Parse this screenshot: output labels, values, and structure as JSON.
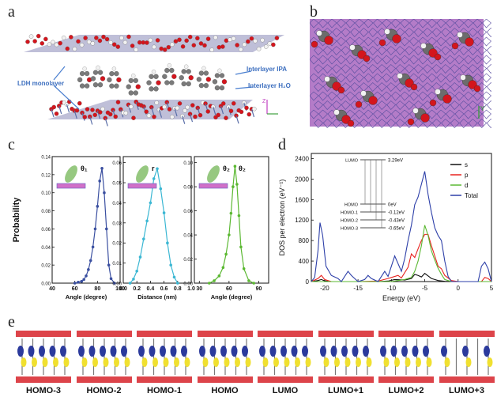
{
  "panels": {
    "a": {
      "letter": "a",
      "labels": {
        "ldh": "LDH monolayer",
        "ipa": "Interlayer IPA",
        "h2o": "Interlayer H₂O",
        "axis_z": "Z",
        "axis_x": "X"
      }
    },
    "b": {
      "letter": "b",
      "labels": {
        "axis_y": "Y"
      }
    },
    "c": {
      "letter": "c"
    },
    "d": {
      "letter": "d"
    },
    "e": {
      "letter": "e"
    }
  },
  "chart_data": [
    {
      "type": "line",
      "panel": "c-left",
      "ylabel": "Probability",
      "xlabel": "Angle (degree)",
      "xlim": [
        40,
        100
      ],
      "ylim": [
        0,
        0.14
      ],
      "xticks": [
        "40",
        "60",
        "80",
        "100"
      ],
      "yticks": [
        "0.00",
        "0.02",
        "0.04",
        "0.06",
        "0.08",
        "0.10",
        "0.12",
        "0.14"
      ],
      "inset_label": "θ₁",
      "color": "#3a4fa0",
      "x": [
        60,
        63,
        66,
        68,
        70,
        72,
        74,
        76,
        78,
        80,
        82,
        84,
        86,
        88,
        90,
        92,
        95
      ],
      "y": [
        0,
        0.001,
        0.002,
        0.004,
        0.008,
        0.015,
        0.025,
        0.04,
        0.06,
        0.085,
        0.113,
        0.127,
        0.1,
        0.06,
        0.02,
        0.005,
        0
      ]
    },
    {
      "type": "line",
      "panel": "c-middle",
      "xlabel": "Distance (nm)",
      "xlim": [
        0.0,
        1.0
      ],
      "ylim": [
        0,
        0.063
      ],
      "xticks": [
        "0.0",
        "0.2",
        "0.4",
        "0.6",
        "0.8",
        "1.0"
      ],
      "yticks": [
        "0.00",
        "0.01",
        "0.02",
        "0.03",
        "0.04",
        "0.05",
        "0.06"
      ],
      "inset_label": "r",
      "color": "#3bb7d3",
      "x": [
        0.1,
        0.15,
        0.2,
        0.25,
        0.3,
        0.35,
        0.4,
        0.45,
        0.5,
        0.55,
        0.6,
        0.65,
        0.7,
        0.75,
        0.8
      ],
      "y": [
        0,
        0.002,
        0.006,
        0.013,
        0.022,
        0.031,
        0.04,
        0.052,
        0.057,
        0.047,
        0.035,
        0.02,
        0.009,
        0.003,
        0
      ]
    },
    {
      "type": "line",
      "panel": "c-right",
      "xlabel": "Angle (degree)",
      "xlim": [
        25,
        100
      ],
      "ylim": [
        0,
        0.105
      ],
      "xticks": [
        "30",
        "60",
        "90"
      ],
      "yticks": [
        "0.00",
        "0.02",
        "0.04",
        "0.06",
        "0.08",
        "0.10"
      ],
      "inset_labels": [
        "θ₂",
        "θ₂"
      ],
      "color": "#5bb832",
      "x": [
        40,
        45,
        50,
        54,
        57,
        60,
        62,
        64,
        66,
        68,
        70,
        72,
        75,
        80,
        85
      ],
      "y": [
        0,
        0.002,
        0.006,
        0.013,
        0.024,
        0.04,
        0.058,
        0.08,
        0.097,
        0.082,
        0.056,
        0.03,
        0.012,
        0.002,
        0
      ]
    },
    {
      "type": "line",
      "panel": "d",
      "ylabel": "DOS per electron (eV⁻¹)",
      "xlabel": "Energy (eV)",
      "xlim": [
        -22,
        5
      ],
      "ylim": [
        0,
        2500
      ],
      "xticks": [
        "-20",
        "-15",
        "-10",
        "-5",
        "0",
        "5"
      ],
      "yticks": [
        "0",
        "400",
        "800",
        "1200",
        "1600",
        "2000",
        "2400"
      ],
      "legend": "top-right",
      "series": [
        {
          "name": "s",
          "color": "#111111",
          "points": [
            [
              -22,
              0
            ],
            [
              -21,
              20
            ],
            [
              -20.5,
              40
            ],
            [
              -20,
              15
            ],
            [
              -19,
              0
            ],
            [
              -12,
              0
            ],
            [
              -10.5,
              10
            ],
            [
              -9.5,
              40
            ],
            [
              -8,
              30
            ],
            [
              -7,
              60
            ],
            [
              -6.5,
              140
            ],
            [
              -6,
              120
            ],
            [
              -5.5,
              90
            ],
            [
              -5,
              160
            ],
            [
              -4.5,
              110
            ],
            [
              -4,
              60
            ],
            [
              -3.5,
              40
            ],
            [
              -3,
              20
            ],
            [
              -2,
              5
            ],
            [
              0,
              0
            ],
            [
              5,
              0
            ]
          ]
        },
        {
          "name": "p",
          "color": "#e8231f",
          "points": [
            [
              -22,
              0
            ],
            [
              -21,
              60
            ],
            [
              -20.5,
              120
            ],
            [
              -20,
              40
            ],
            [
              -19,
              0
            ],
            [
              -15,
              0
            ],
            [
              -12,
              10
            ],
            [
              -10.5,
              60
            ],
            [
              -10,
              80
            ],
            [
              -9,
              120
            ],
            [
              -8.5,
              70
            ],
            [
              -7.5,
              280
            ],
            [
              -7,
              540
            ],
            [
              -6.5,
              470
            ],
            [
              -6,
              640
            ],
            [
              -5.5,
              800
            ],
            [
              -5,
              920
            ],
            [
              -4.5,
              920
            ],
            [
              -4,
              700
            ],
            [
              -3.5,
              500
            ],
            [
              -3,
              300
            ],
            [
              -2.5,
              250
            ],
            [
              -2,
              120
            ],
            [
              -1,
              20
            ],
            [
              0,
              0
            ],
            [
              3.5,
              0
            ],
            [
              4,
              80
            ],
            [
              4.5,
              60
            ],
            [
              5,
              0
            ]
          ]
        },
        {
          "name": "d",
          "color": "#5bb832",
          "points": [
            [
              -22,
              0
            ],
            [
              -10,
              0
            ],
            [
              -9,
              20
            ],
            [
              -8,
              40
            ],
            [
              -7,
              80
            ],
            [
              -6.5,
              200
            ],
            [
              -6,
              400
            ],
            [
              -5.5,
              700
            ],
            [
              -5,
              1100
            ],
            [
              -4.5,
              900
            ],
            [
              -4,
              600
            ],
            [
              -3.5,
              420
            ],
            [
              -3,
              260
            ],
            [
              -2.5,
              140
            ],
            [
              -2,
              40
            ],
            [
              -1,
              0
            ],
            [
              5,
              0
            ]
          ]
        },
        {
          "name": "Total",
          "color": "#2d3fa8",
          "points": [
            [
              -22,
              0
            ],
            [
              -21.5,
              80
            ],
            [
              -21,
              600
            ],
            [
              -20.7,
              1150
            ],
            [
              -20.3,
              900
            ],
            [
              -19.8,
              300
            ],
            [
              -19,
              120
            ],
            [
              -18,
              60
            ],
            [
              -17.5,
              0
            ],
            [
              -16.5,
              200
            ],
            [
              -16,
              120
            ],
            [
              -15,
              0
            ],
            [
              -14,
              40
            ],
            [
              -13.5,
              120
            ],
            [
              -13,
              60
            ],
            [
              -12,
              0
            ],
            [
              -11,
              200
            ],
            [
              -10.5,
              100
            ],
            [
              -10,
              300
            ],
            [
              -9.5,
              500
            ],
            [
              -9,
              350
            ],
            [
              -8.5,
              200
            ],
            [
              -8,
              450
            ],
            [
              -7.5,
              800
            ],
            [
              -7,
              1100
            ],
            [
              -6.5,
              1500
            ],
            [
              -6,
              1650
            ],
            [
              -5.5,
              1900
            ],
            [
              -5,
              2150
            ],
            [
              -4.5,
              1700
            ],
            [
              -4,
              1350
            ],
            [
              -3.5,
              1050
            ],
            [
              -3,
              900
            ],
            [
              -2.5,
              800
            ],
            [
              -2,
              400
            ],
            [
              -1.5,
              100
            ],
            [
              -1,
              0
            ],
            [
              3,
              0
            ],
            [
              3.5,
              300
            ],
            [
              4,
              380
            ],
            [
              4.5,
              250
            ],
            [
              5,
              0
            ]
          ]
        }
      ],
      "inset": {
        "levels": [
          {
            "name": "LUMO",
            "value": "3.29eV"
          },
          {
            "name": "HOMO",
            "value": "0eV"
          },
          {
            "name": "HOMO-1",
            "value": "-0.12eV"
          },
          {
            "name": "HOMO-2",
            "value": "-0.43eV"
          },
          {
            "name": "HOMO-3",
            "value": "-0.65eV"
          }
        ]
      }
    }
  ],
  "orbitals": [
    "HOMO-3",
    "HOMO-2",
    "HOMO-1",
    "HOMO",
    "LUMO",
    "LUMO+1",
    "LUMO+2",
    "LUMO+3"
  ],
  "colors": {
    "oxygen": "#d4151d",
    "hydrogen": "#f2f2f2",
    "carbon": "#7a7a7a",
    "metal": "#5a6ea8",
    "lattice": "#9b3fa8",
    "orb_yellow": "#f0e030",
    "orb_blue": "#2b3a9c"
  }
}
